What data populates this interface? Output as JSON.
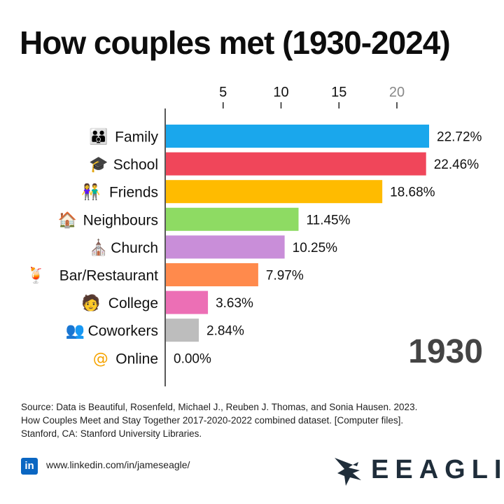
{
  "title": "How couples met (1930-2024)",
  "chart_data": {
    "type": "bar",
    "orientation": "horizontal",
    "year": "1930",
    "xticks": [
      5,
      10,
      15,
      20
    ],
    "xlim": [
      0,
      22.72
    ],
    "value_suffix": "%",
    "grid": false,
    "categories": [
      "Family",
      "School",
      "Friends",
      "Neighbours",
      "Church",
      "Bar/Restaurant",
      "College",
      "Coworkers",
      "Online"
    ],
    "icons": [
      "family-icon",
      "graduation-cap-icon",
      "friends-icon",
      "house-icon",
      "church-icon",
      "cocktail-icon",
      "graduate-icon",
      "coworkers-icon",
      "at-sign-icon"
    ],
    "values": [
      22.72,
      22.46,
      18.68,
      11.45,
      10.25,
      7.97,
      3.63,
      2.84,
      0.0
    ],
    "labels": [
      "22.72%",
      "22.46%",
      "18.68%",
      "11.45%",
      "10.25%",
      "7.97%",
      "3.63%",
      "2.84%",
      "0.00%"
    ],
    "colors": [
      "#1aa7ec",
      "#f0465a",
      "#ffbb00",
      "#8edb63",
      "#c98ed9",
      "#ff8a4c",
      "#ec6fb5",
      "#bdbdbd",
      "#bdbdbd"
    ]
  },
  "source": {
    "lines": [
      "Source: Data is Beautiful, Rosenfeld, Michael J., Reuben J. Thomas, and Sonia Hausen. 2023.",
      "How Couples Meet and Stay Together 2017-2020-2022 combined dataset. [Computer files].",
      "Stanford, CA: Stanford University Libraries."
    ]
  },
  "footer": {
    "linkedin_icon": "in",
    "linkedin_url": "www.linkedin.com/in/jameseagle/",
    "brand": "EEAGLI"
  }
}
